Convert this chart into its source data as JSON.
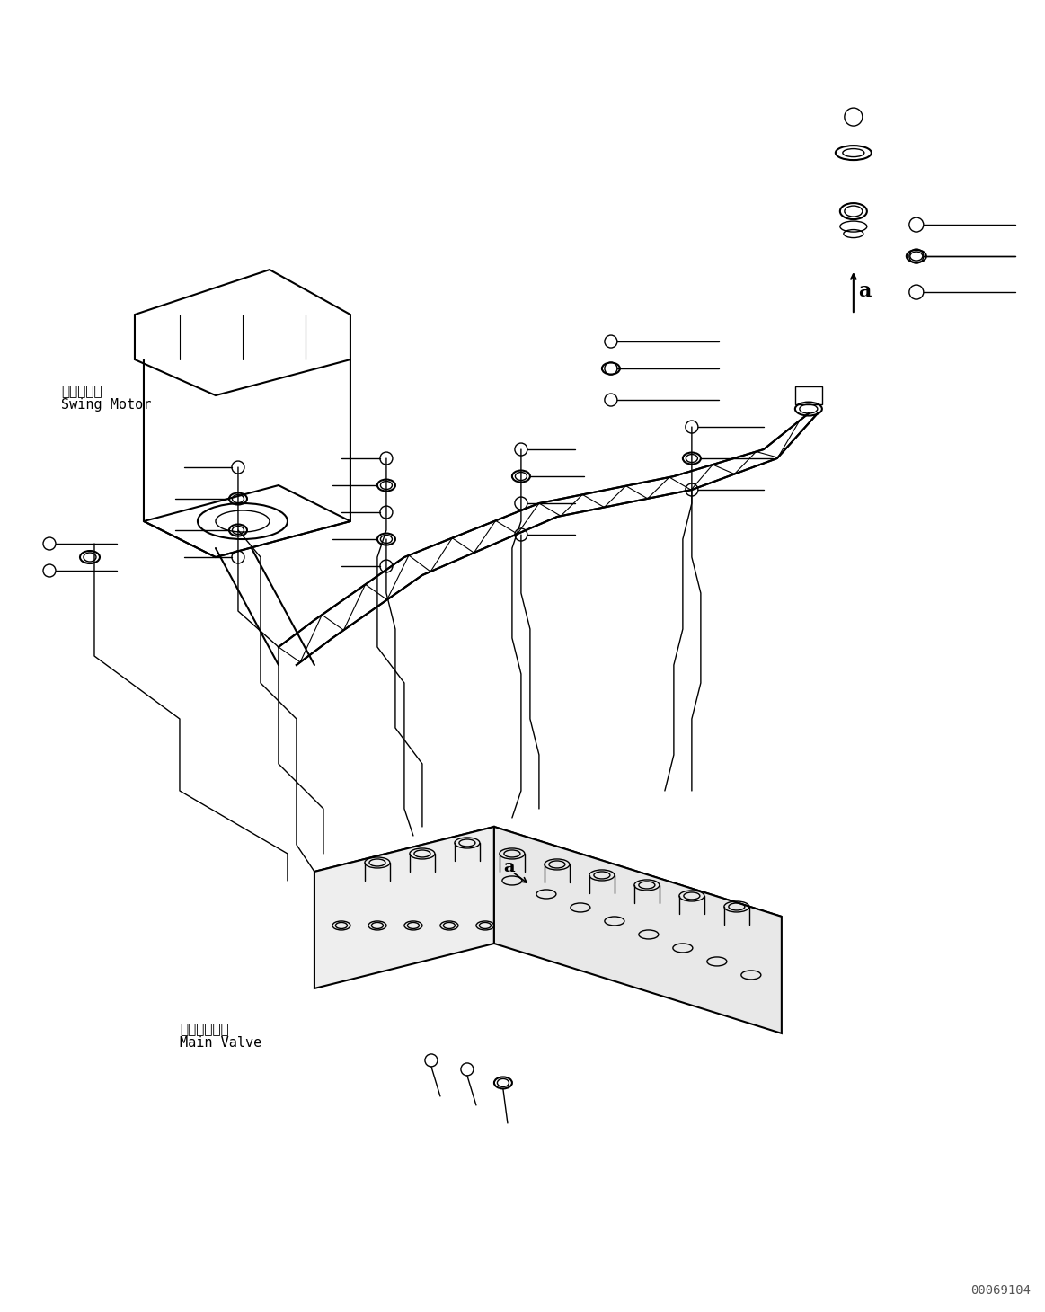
{
  "bg_color": "#ffffff",
  "line_color": "#000000",
  "figsize": [
    11.63,
    14.6
  ],
  "dpi": 100,
  "swing_motor_label_jp": "旋回モータ",
  "swing_motor_label_en": "Swing Motor",
  "main_valve_label_jp": "メインバルブ",
  "main_valve_label_en": "Main Valve",
  "watermark": "00069104"
}
